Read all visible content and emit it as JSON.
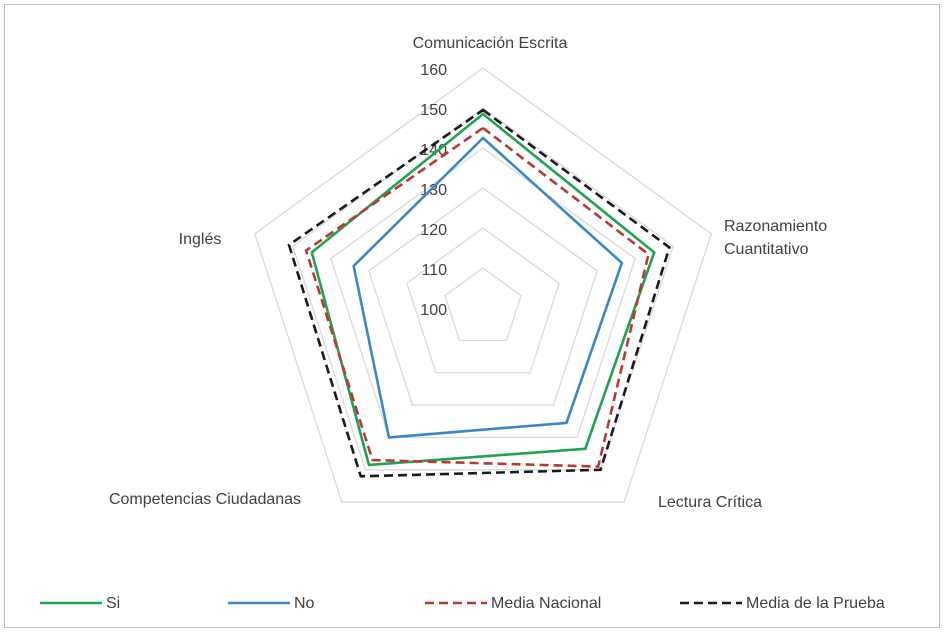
{
  "chart_data": {
    "type": "radar",
    "categories": [
      "Comunicación Escrita",
      "Razonamiento Cuantitativo",
      "Lectura Crítica",
      "Competencias Ciudadanas",
      "Inglés"
    ],
    "series": [
      {
        "name": "Si",
        "color": "#21a252",
        "dash": "solid",
        "values": [
          148.5,
          145,
          143.5,
          148.5,
          145
        ]
      },
      {
        "name": "No",
        "color": "#3a87c8",
        "dash": "solid",
        "values": [
          142.5,
          136.5,
          135.5,
          140,
          134
        ]
      },
      {
        "name": "Media Nacional",
        "color": "#b83a32",
        "dash": "dashed",
        "values": [
          145,
          143.5,
          149,
          147,
          146.5
        ]
      },
      {
        "name": "Media de la Prueba",
        "color": "#1a1a1a",
        "dash": "dashed",
        "values": [
          149.5,
          149,
          150,
          152,
          151
        ]
      }
    ],
    "ylim": [
      100,
      160
    ],
    "yticks": [
      100,
      110,
      120,
      130,
      140,
      150,
      160
    ],
    "grid": true,
    "legend": "bottom"
  }
}
